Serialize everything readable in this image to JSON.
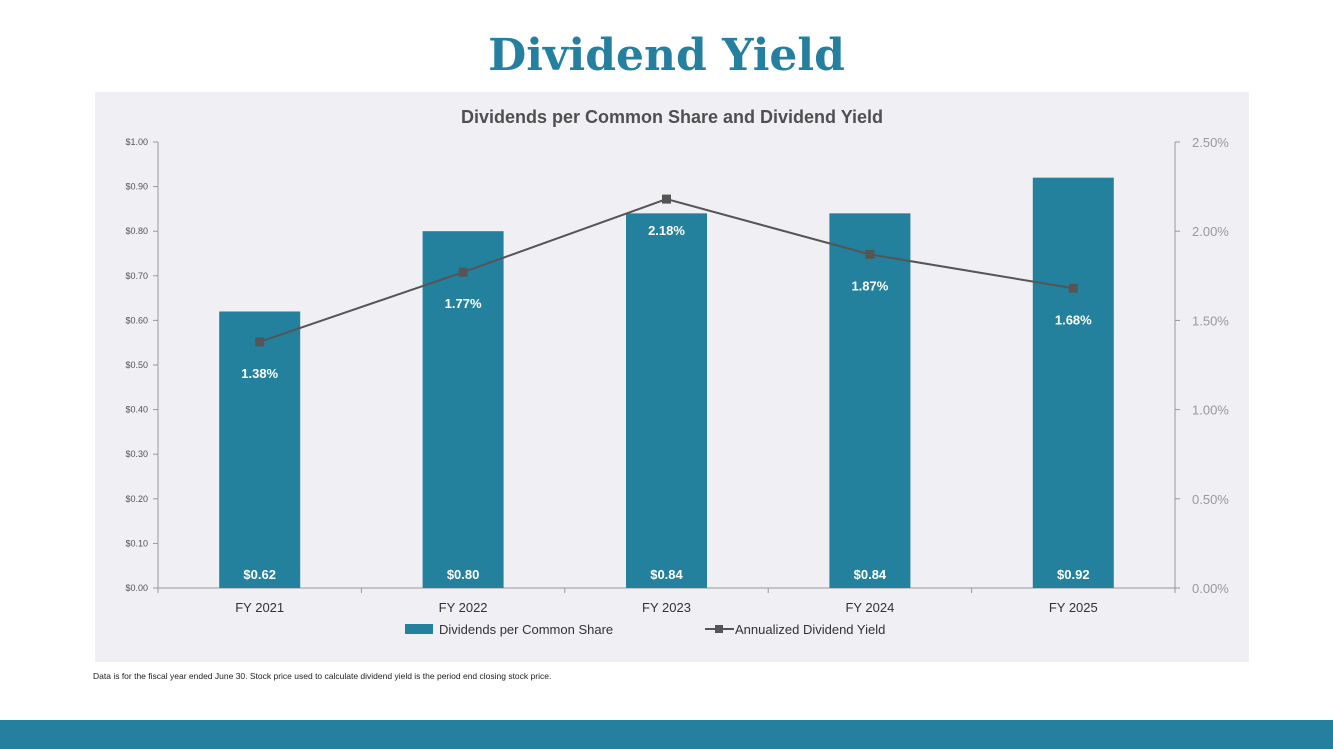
{
  "page": {
    "title": "Dividend Yield",
    "footnote": "Data is for the fiscal year ended June 30. Stock price used to calculate dividend yield is the period end closing stock price."
  },
  "colors": {
    "title": "#2580A0",
    "bar": "#23819E",
    "line": "#555555",
    "panel": "#EFEFF4",
    "footer": "#24809E"
  },
  "chart_data": {
    "type": "bar",
    "title": "Dividends per Common Share and Dividend Yield",
    "categories": [
      "FY 2021",
      "FY 2022",
      "FY 2023",
      "FY 2024",
      "FY 2025"
    ],
    "series": [
      {
        "name": "Dividends per Common Share",
        "type": "bar",
        "axis": "left",
        "values": [
          0.62,
          0.8,
          0.84,
          0.84,
          0.92
        ],
        "labels": [
          "$0.62",
          "$0.80",
          "$0.84",
          "$0.84",
          "$0.92"
        ]
      },
      {
        "name": "Annualized Dividend Yield",
        "type": "line",
        "axis": "right",
        "marker": "square",
        "values": [
          1.38,
          1.77,
          2.18,
          1.87,
          1.68
        ],
        "labels": [
          "1.38%",
          "1.77%",
          "2.18%",
          "1.87%",
          "1.68%"
        ]
      }
    ],
    "y_left": {
      "range": [
        0,
        1.0
      ],
      "ticks": [
        0,
        0.1,
        0.2,
        0.3,
        0.4,
        0.5,
        0.6,
        0.7,
        0.8,
        0.9,
        1.0
      ],
      "tick_labels": [
        "$0.00",
        "$0.10",
        "$0.20",
        "$0.30",
        "$0.40",
        "$0.50",
        "$0.60",
        "$0.70",
        "$0.80",
        "$0.90",
        "$1.00"
      ]
    },
    "y_right": {
      "range": [
        0,
        2.5
      ],
      "ticks": [
        0,
        0.5,
        1.0,
        1.5,
        2.0,
        2.5
      ],
      "tick_labels": [
        "0.00%",
        "0.50%",
        "1.00%",
        "1.50%",
        "2.00%",
        "2.50%"
      ]
    },
    "xlabel": "",
    "grid": false,
    "legend": {
      "position": "bottom",
      "items": [
        "Dividends per Common Share",
        "Annualized Dividend Yield"
      ]
    }
  }
}
